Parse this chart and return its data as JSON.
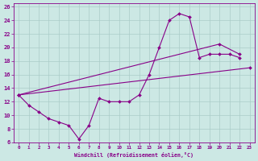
{
  "xlabel": "Windchill (Refroidissement éolien,°C)",
  "bg_color": "#cce8e4",
  "grid_color": "#aaccc8",
  "line_color": "#880088",
  "xlim": [
    -0.5,
    23.5
  ],
  "ylim": [
    6,
    26.5
  ],
  "xticks": [
    0,
    1,
    2,
    3,
    4,
    5,
    6,
    7,
    8,
    9,
    10,
    11,
    12,
    13,
    14,
    15,
    16,
    17,
    18,
    19,
    20,
    21,
    22,
    23
  ],
  "yticks": [
    6,
    8,
    10,
    12,
    14,
    16,
    18,
    20,
    22,
    24,
    26
  ],
  "series": [
    {
      "x": [
        0,
        1,
        2,
        3,
        4,
        5,
        6,
        7,
        8,
        9,
        10,
        11,
        12,
        13,
        14,
        15,
        16,
        17,
        18,
        19,
        20,
        21,
        22
      ],
      "y": [
        13,
        11.5,
        10.5,
        9.5,
        9.0,
        8.5,
        6.5,
        8.5,
        12.5,
        12.0,
        12.0,
        12.0,
        13.0,
        16.0,
        20.0,
        24.0,
        25.0,
        24.5,
        18.5,
        19.0,
        19.0,
        19.0,
        18.5
      ]
    },
    {
      "x": [
        0,
        20,
        22
      ],
      "y": [
        13,
        20.5,
        19.0
      ]
    },
    {
      "x": [
        0,
        23
      ],
      "y": [
        13,
        17.0
      ]
    }
  ]
}
